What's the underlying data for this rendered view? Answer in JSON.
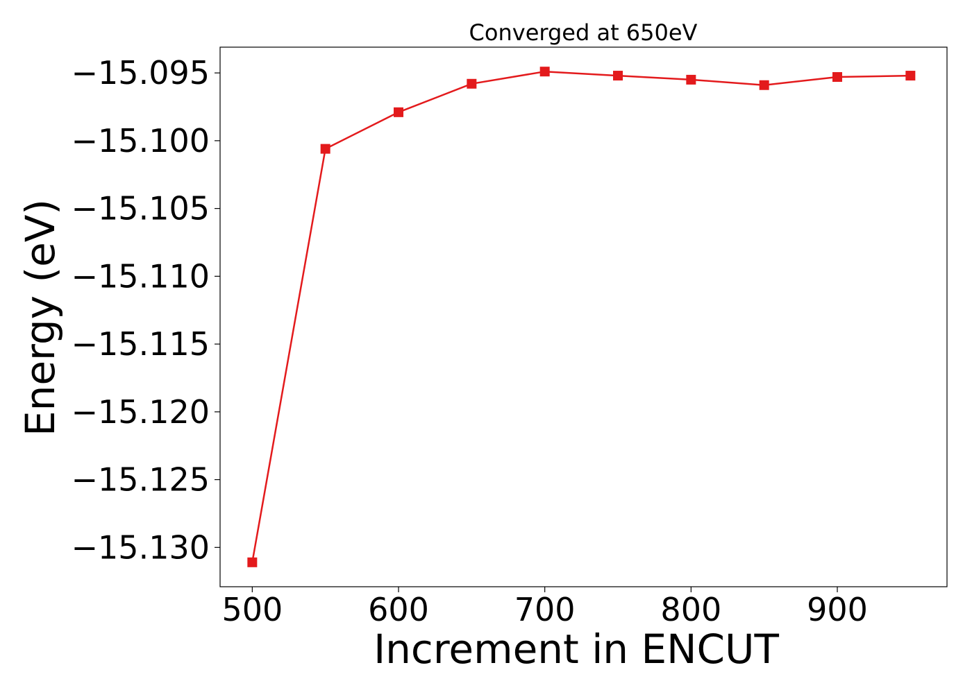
{
  "chart_data": {
    "type": "line",
    "title": "Converged at 650eV",
    "xlabel": "Increment in ENCUT",
    "ylabel": "Energy (eV)",
    "xlim": [
      478,
      975
    ],
    "ylim": [
      -15.1329,
      -15.0931
    ],
    "xticks": [
      500,
      600,
      700,
      800,
      900
    ],
    "xtick_labels": [
      "500",
      "600",
      "700",
      "800",
      "900"
    ],
    "yticks": [
      -15.095,
      -15.1,
      -15.105,
      -15.11,
      -15.115,
      -15.12,
      -15.125,
      -15.13
    ],
    "ytick_labels": [
      "−15.095",
      "−15.100",
      "−15.105",
      "−15.110",
      "−15.115",
      "−15.120",
      "−15.125",
      "−15.130"
    ],
    "grid": false,
    "legend": "none",
    "series": [
      {
        "color": "#e31a1c",
        "marker": "square",
        "x": [
          500,
          550,
          600,
          650,
          700,
          750,
          800,
          850,
          900,
          950
        ],
        "y": [
          -15.1311,
          -15.1006,
          -15.0979,
          -15.0958,
          -15.0949,
          -15.0952,
          -15.0955,
          -15.0959,
          -15.0953,
          -15.0952
        ]
      }
    ]
  }
}
